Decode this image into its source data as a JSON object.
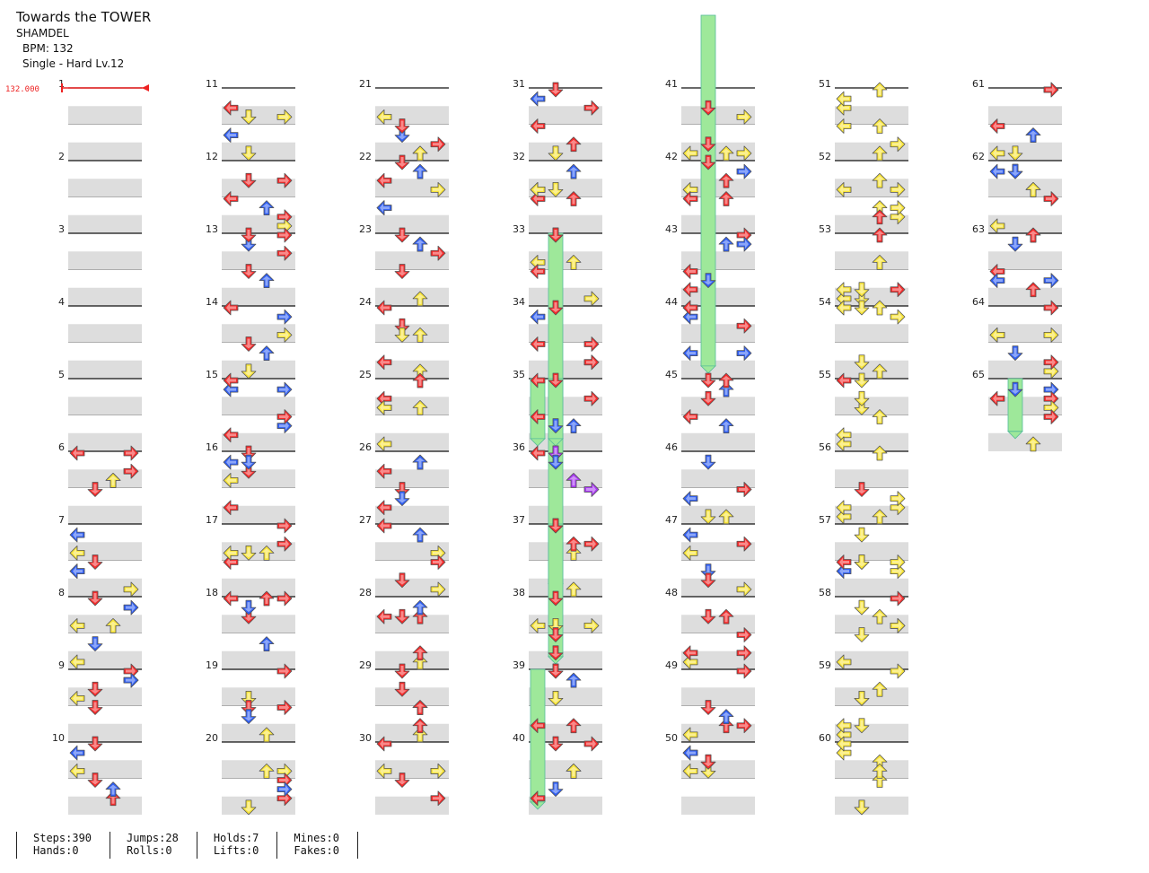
{
  "song": {
    "title": "Towards the TOWER",
    "artist": "SHAMDEL",
    "bpm_text": "BPM: 132",
    "difficulty": "Single - Hard  Lv.12"
  },
  "bpm_marker": "132.000",
  "colors": {
    "red": "#f32a2a",
    "blue": "#2f5ef2",
    "yellow": "#f7e43a",
    "purple": "#a637f0",
    "hold": "#9ee89a",
    "band": "#dddddd"
  },
  "chart": {
    "measure_count": 65,
    "measures_per_column": 10,
    "lanes": [
      "left",
      "down",
      "up",
      "right"
    ]
  },
  "stats": {
    "steps": "Steps:390",
    "hands": "Hands:0",
    "jumps": "Jumps:28",
    "rolls": "Rolls:0",
    "holds": "Holds:7",
    "lifts": "Lifts:0",
    "mines": "Mines:0",
    "fakes": "Fakes:0"
  }
}
